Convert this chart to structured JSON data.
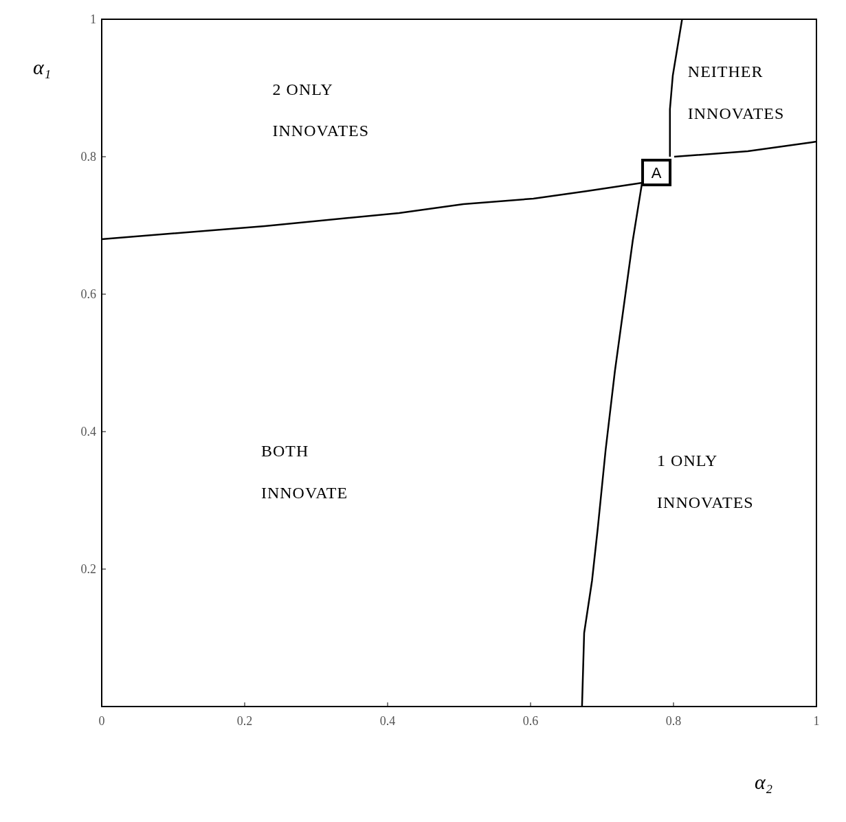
{
  "chart_data": {
    "type": "line",
    "xlabel": "α₂",
    "ylabel": "α₁",
    "xlim": [
      0,
      1
    ],
    "ylim": [
      0,
      1
    ],
    "xticks": [
      0,
      0.2,
      0.4,
      0.6,
      0.8,
      1
    ],
    "yticks": [
      0.2,
      0.4,
      0.6,
      0.8,
      1
    ],
    "grid": false,
    "line_style": "solid",
    "series": [
      {
        "color": "#000000",
        "x": [
          0,
          0.228,
          0.416,
          0.506,
          0.604,
          0.679,
          0.756
        ],
        "values": [
          0.68,
          0.699,
          0.718,
          0.731,
          0.739,
          0.75,
          0.762
        ]
      },
      {
        "color": "#000000",
        "x": [
          0.801,
          0.904,
          0.994,
          1
        ],
        "values": [
          0.8,
          0.808,
          0.821,
          0.822
        ]
      },
      {
        "color": "#000000",
        "x": [
          0.672,
          0.675,
          0.686,
          0.694,
          0.705,
          0.718,
          0.743,
          0.756
        ],
        "values": [
          0,
          0.107,
          0.183,
          0.259,
          0.373,
          0.488,
          0.678,
          0.762
        ]
      },
      {
        "color": "#000000",
        "x": [
          0.795,
          0.795,
          0.799,
          0.812
        ],
        "values": [
          0.8,
          0.869,
          0.918,
          1
        ]
      }
    ],
    "annotations": [
      "2 ONLY",
      "INNOVATES",
      "NEITHER",
      "INNOVATES",
      "BOTH",
      "INNOVATE",
      "1 ONLY",
      "INNOVATES",
      {
        "text": "A",
        "x": 0.776,
        "y": 0.777
      }
    ]
  }
}
